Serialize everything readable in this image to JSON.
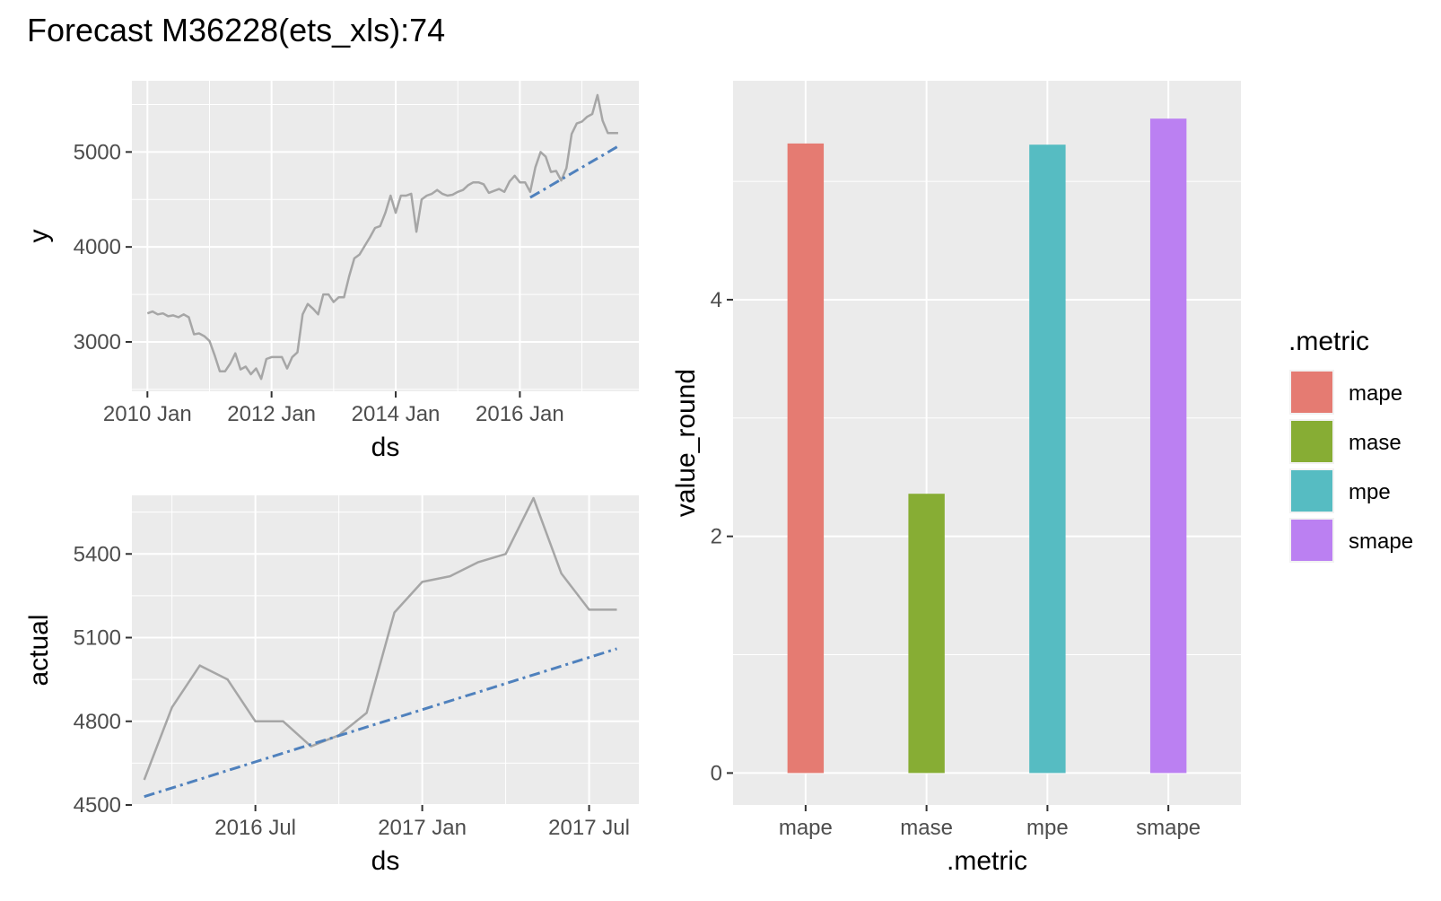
{
  "title": "Forecast M36228(ets_xls):74",
  "colors": {
    "actual_line": "#a6a6a6",
    "forecast_line": "#4f81bd",
    "mape": "#e57b72",
    "mase": "#87ad34",
    "mpe": "#56bcc2",
    "smape": "#bb80f2"
  },
  "chart_data": [
    {
      "type": "line",
      "xlabel": "ds",
      "ylabel": "y",
      "x_ticks": [
        "2010 Jan",
        "2012 Jan",
        "2014 Jan",
        "2016 Jan"
      ],
      "y_ticks": [
        3000,
        4000,
        5000
      ],
      "xlim": [
        "2009-10",
        "2017-12"
      ],
      "ylim": [
        2480,
        5750
      ],
      "series": [
        {
          "style": "solid",
          "x": [
            "2010-01",
            "2010-02",
            "2010-03",
            "2010-04",
            "2010-05",
            "2010-06",
            "2010-07",
            "2010-08",
            "2010-09",
            "2010-10",
            "2010-11",
            "2010-12",
            "2011-01",
            "2011-02",
            "2011-03",
            "2011-04",
            "2011-05",
            "2011-06",
            "2011-07",
            "2011-08",
            "2011-09",
            "2011-10",
            "2011-11",
            "2011-12",
            "2012-01",
            "2012-02",
            "2012-03",
            "2012-04",
            "2012-05",
            "2012-06",
            "2012-07",
            "2012-08",
            "2012-09",
            "2012-10",
            "2012-11",
            "2012-12",
            "2013-01",
            "2013-02",
            "2013-03",
            "2013-04",
            "2013-05",
            "2013-06",
            "2013-07",
            "2013-08",
            "2013-09",
            "2013-10",
            "2013-11",
            "2013-12",
            "2014-01",
            "2014-02",
            "2014-03",
            "2014-04",
            "2014-05",
            "2014-06",
            "2014-07",
            "2014-08",
            "2014-09",
            "2014-10",
            "2014-11",
            "2014-12",
            "2015-01",
            "2015-02",
            "2015-03",
            "2015-04",
            "2015-05",
            "2015-06",
            "2015-07",
            "2015-08",
            "2015-09",
            "2015-10",
            "2015-11",
            "2015-12",
            "2016-01",
            "2016-02",
            "2016-03",
            "2016-04",
            "2016-05",
            "2016-06",
            "2016-07",
            "2016-08",
            "2016-09",
            "2016-10",
            "2016-11",
            "2016-12",
            "2017-01",
            "2017-02",
            "2017-03",
            "2017-04",
            "2017-05",
            "2017-06",
            "2017-07",
            "2017-08"
          ],
          "values": [
            3300,
            3320,
            3290,
            3300,
            3270,
            3280,
            3260,
            3290,
            3260,
            3080,
            3090,
            3060,
            3010,
            2860,
            2690,
            2690,
            2770,
            2880,
            2710,
            2740,
            2660,
            2720,
            2610,
            2820,
            2840,
            2840,
            2840,
            2720,
            2840,
            2890,
            3290,
            3400,
            3350,
            3290,
            3500,
            3500,
            3420,
            3470,
            3470,
            3690,
            3880,
            3920,
            4010,
            4100,
            4200,
            4220,
            4360,
            4540,
            4360,
            4540,
            4540,
            4560,
            4160,
            4500,
            4540,
            4560,
            4600,
            4560,
            4540,
            4550,
            4580,
            4600,
            4650,
            4680,
            4680,
            4660,
            4570,
            4590,
            4610,
            4580,
            4690,
            4750,
            4680,
            4680,
            4580,
            4840,
            5000,
            4950,
            4790,
            4800,
            4700,
            4830,
            5190,
            5300,
            5320,
            5370,
            5400,
            5600,
            5330,
            5200,
            5200,
            5200
          ]
        },
        {
          "style": "dashed",
          "x": [
            "2016-03",
            "2017-08"
          ],
          "values": [
            4520,
            5060
          ]
        }
      ]
    },
    {
      "type": "line",
      "xlabel": "ds",
      "ylabel": "actual",
      "x_ticks": [
        "2016 Jul",
        "2017 Jan",
        "2017 Jul"
      ],
      "y_ticks": [
        4500,
        4800,
        5100,
        5400
      ],
      "xlim": [
        "2016-02-18",
        "2017-08-25"
      ],
      "ylim": [
        4500,
        5610
      ],
      "series": [
        {
          "style": "solid",
          "x": [
            "2016-03-01",
            "2016-04-01",
            "2016-05-01",
            "2016-06-01",
            "2016-07-01",
            "2016-08-01",
            "2016-09-01",
            "2016-10-01",
            "2016-11-01",
            "2016-12-01",
            "2017-01-01",
            "2017-02-01",
            "2017-03-01",
            "2017-04-01",
            "2017-05-01",
            "2017-06-01",
            "2017-07-01",
            "2017-08-01"
          ],
          "values": [
            4590,
            4850,
            5000,
            4950,
            4800,
            4800,
            4710,
            4750,
            4830,
            5190,
            5300,
            5320,
            5370,
            5400,
            5600,
            5330,
            5200,
            5200
          ]
        },
        {
          "style": "dashed",
          "x": [
            "2016-03-01",
            "2017-08-01"
          ],
          "values": [
            4530,
            5060
          ]
        }
      ]
    },
    {
      "type": "bar",
      "xlabel": ".metric",
      "ylabel": "value_round",
      "categories": [
        "mape",
        "mase",
        "mpe",
        "smape"
      ],
      "values": [
        5.32,
        2.36,
        5.31,
        5.53
      ],
      "y_ticks": [
        0,
        2,
        4
      ],
      "ylim": [
        -0.27,
        5.85
      ],
      "legend": {
        "title": ".metric",
        "position": "right",
        "entries": [
          "mape",
          "mase",
          "mpe",
          "smape"
        ]
      }
    }
  ]
}
